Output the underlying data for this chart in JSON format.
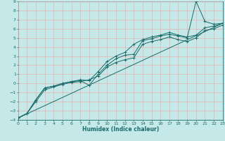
{
  "xlabel": "Humidex (Indice chaleur)",
  "xlim": [
    0,
    23
  ],
  "ylim": [
    -4,
    9
  ],
  "xticks": [
    0,
    1,
    2,
    3,
    4,
    5,
    6,
    7,
    8,
    9,
    10,
    11,
    12,
    13,
    14,
    15,
    16,
    17,
    18,
    19,
    20,
    21,
    22,
    23
  ],
  "yticks": [
    -4,
    -3,
    -2,
    -1,
    0,
    1,
    2,
    3,
    4,
    5,
    6,
    7,
    8,
    9
  ],
  "bg_color": "#c5e8e8",
  "grid_color": "#e8b0b0",
  "line_color": "#1a6b6b",
  "lines": [
    {
      "x": [
        0,
        1,
        2,
        3,
        4,
        5,
        6,
        7,
        8,
        9,
        10,
        11,
        12,
        13,
        14,
        15,
        16,
        17,
        18,
        19,
        20,
        21,
        22,
        23
      ],
      "y": [
        -3.8,
        -3.3,
        -1.8,
        -0.5,
        -0.3,
        0.0,
        0.2,
        0.3,
        -0.2,
        1.0,
        2.0,
        2.7,
        3.1,
        3.2,
        4.7,
        4.9,
        5.2,
        5.4,
        5.2,
        5.0,
        9.0,
        6.8,
        6.5,
        6.6
      ],
      "marker": true
    },
    {
      "x": [
        0,
        1,
        2,
        3,
        4,
        5,
        6,
        7,
        8,
        9,
        10,
        11,
        12,
        13,
        14,
        15,
        16,
        17,
        18,
        19,
        20,
        21,
        22,
        23
      ],
      "y": [
        -3.8,
        -3.3,
        -1.8,
        -0.5,
        -0.3,
        0.0,
        0.2,
        0.4,
        0.3,
        1.3,
        2.4,
        3.0,
        3.4,
        4.3,
        4.8,
        5.1,
        5.3,
        5.6,
        5.3,
        5.1,
        5.3,
        6.1,
        6.3,
        6.6
      ],
      "marker": true
    },
    {
      "x": [
        0,
        1,
        2,
        3,
        4,
        5,
        6,
        7,
        8,
        9,
        10,
        11,
        12,
        13,
        14,
        15,
        16,
        17,
        18,
        19,
        20,
        21,
        22,
        23
      ],
      "y": [
        -3.8,
        -3.3,
        -2.0,
        -0.7,
        -0.4,
        -0.1,
        0.1,
        0.2,
        0.4,
        0.8,
        1.8,
        2.3,
        2.6,
        2.8,
        4.3,
        4.6,
        4.8,
        5.1,
        4.8,
        4.6,
        5.0,
        5.8,
        6.0,
        6.4
      ],
      "marker": true
    },
    {
      "x": [
        0,
        23
      ],
      "y": [
        -3.8,
        6.6
      ],
      "marker": false
    }
  ]
}
